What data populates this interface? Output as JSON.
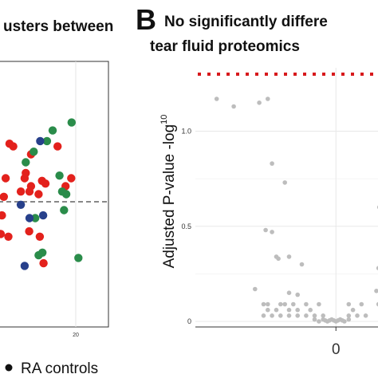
{
  "panel_a": {
    "title_fragment": "usters between",
    "legend": {
      "label": "RA controls",
      "color": "#111111"
    }
  },
  "panel_b": {
    "letter": "B",
    "title_line1": "No significantly differe",
    "title_line2": "tear fluid proteomics",
    "ylabel": "Adjusted P-value -log",
    "ylabel_superscript": "10"
  },
  "colors": {
    "red": "#e3211c",
    "green": "#2a8c4a",
    "blue": "#27408b",
    "grey": "#bdbdbd",
    "threshold": "#d7191c"
  },
  "chart_data": [
    {
      "type": "scatter",
      "panel": "A",
      "x_tick_labels": [
        "20"
      ],
      "xlim": [
        0,
        21
      ],
      "ylim": [
        0,
        10
      ],
      "x_ticks": [
        20
      ],
      "reference_line_y": 5.2,
      "grid": true,
      "series": [
        {
          "color": "red",
          "points": [
            [
              0.5,
              4.2
            ],
            [
              1.5,
              5.6
            ],
            [
              2.2,
              3.4
            ],
            [
              5.5,
              5.1
            ],
            [
              6.5,
              5.6
            ],
            [
              8.2,
              6.5
            ],
            [
              8.2,
              5.3
            ],
            [
              7.7,
              3.6
            ],
            [
              7.8,
              5.1
            ],
            [
              2.5,
              6.9
            ],
            [
              3.5,
              6.8
            ],
            [
              6.8,
              5.8
            ],
            [
              10.2,
              5.0
            ],
            [
              11.1,
              5.5
            ],
            [
              12.0,
              5.4
            ],
            [
              15.2,
              6.8
            ],
            [
              17.3,
              5.3
            ],
            [
              18.8,
              5.6
            ],
            [
              10.5,
              3.4
            ],
            [
              11.5,
              2.4
            ],
            [
              1.0,
              4.9
            ],
            [
              0.2,
              3.5
            ]
          ]
        },
        {
          "color": "green",
          "points": [
            [
              6.8,
              6.2
            ],
            [
              8.9,
              6.6
            ],
            [
              9.3,
              4.1
            ],
            [
              10.2,
              2.7
            ],
            [
              12.4,
              7.0
            ],
            [
              13.9,
              7.4
            ],
            [
              15.7,
              5.7
            ],
            [
              16.4,
              5.1
            ],
            [
              16.9,
              4.4
            ],
            [
              17.5,
              5.0
            ],
            [
              18.9,
              7.7
            ],
            [
              20.7,
              2.6
            ],
            [
              11.2,
              2.8
            ]
          ]
        },
        {
          "color": "blue",
          "points": [
            [
              5.5,
              4.6
            ],
            [
              6.5,
              2.3
            ],
            [
              7.8,
              4.1
            ],
            [
              10.6,
              7.0
            ],
            [
              11.4,
              4.2
            ]
          ]
        }
      ]
    },
    {
      "type": "scatter",
      "panel": "B",
      "ylabel": "Adjusted P-value -log10",
      "ylim": [
        -0.02,
        1.3
      ],
      "y_ticks": [
        0,
        0.5,
        1.0
      ],
      "y_tick_labels": [
        "0",
        "0.5",
        "1.0"
      ],
      "xlim": [
        -3.3,
        1.1
      ],
      "x_ticks": [
        0
      ],
      "x_tick_labels": [
        "0"
      ],
      "grid": true,
      "threshold_y": 1.3,
      "series": [
        {
          "color": "grey",
          "points": [
            [
              -2.8,
              1.17
            ],
            [
              -2.4,
              1.13
            ],
            [
              -1.8,
              1.15
            ],
            [
              -1.6,
              1.17
            ],
            [
              -1.5,
              0.83
            ],
            [
              -1.2,
              0.73
            ],
            [
              -1.65,
              0.48
            ],
            [
              -1.5,
              0.47
            ],
            [
              -1.4,
              0.34
            ],
            [
              -1.35,
              0.33
            ],
            [
              -1.1,
              0.34
            ],
            [
              -0.8,
              0.3
            ],
            [
              -1.9,
              0.17
            ],
            [
              -1.1,
              0.15
            ],
            [
              -0.9,
              0.14
            ],
            [
              -1.7,
              0.09
            ],
            [
              -1.6,
              0.09
            ],
            [
              -1.3,
              0.09
            ],
            [
              -1.2,
              0.09
            ],
            [
              -1.0,
              0.09
            ],
            [
              -0.7,
              0.09
            ],
            [
              -0.4,
              0.09
            ],
            [
              0.3,
              0.09
            ],
            [
              0.6,
              0.09
            ],
            [
              -1.6,
              0.06
            ],
            [
              -1.4,
              0.06
            ],
            [
              -1.1,
              0.06
            ],
            [
              -0.9,
              0.06
            ],
            [
              -0.6,
              0.06
            ],
            [
              0.4,
              0.06
            ],
            [
              -1.7,
              0.03
            ],
            [
              -1.5,
              0.03
            ],
            [
              -1.3,
              0.03
            ],
            [
              -1.1,
              0.03
            ],
            [
              -0.9,
              0.03
            ],
            [
              -0.7,
              0.03
            ],
            [
              -0.5,
              0.03
            ],
            [
              -0.3,
              0.03
            ],
            [
              0.3,
              0.03
            ],
            [
              0.5,
              0.03
            ],
            [
              0.7,
              0.03
            ],
            [
              -0.5,
              0.01
            ],
            [
              -0.4,
              0.0
            ],
            [
              -0.3,
              0.01
            ],
            [
              -0.2,
              0.0
            ],
            [
              -0.1,
              0.01
            ],
            [
              0.0,
              0.0
            ],
            [
              0.1,
              0.01
            ],
            [
              0.2,
              0.0
            ],
            [
              0.3,
              0.01
            ],
            [
              -0.25,
              0.005
            ],
            [
              -0.15,
              0.005
            ],
            [
              -0.05,
              0.005
            ],
            [
              0.05,
              0.005
            ],
            [
              0.15,
              0.005
            ],
            [
              0.95,
              0.16
            ],
            [
              1.0,
              0.28
            ],
            [
              1.0,
              0.09
            ],
            [
              1.02,
              0.6
            ]
          ]
        }
      ]
    }
  ]
}
